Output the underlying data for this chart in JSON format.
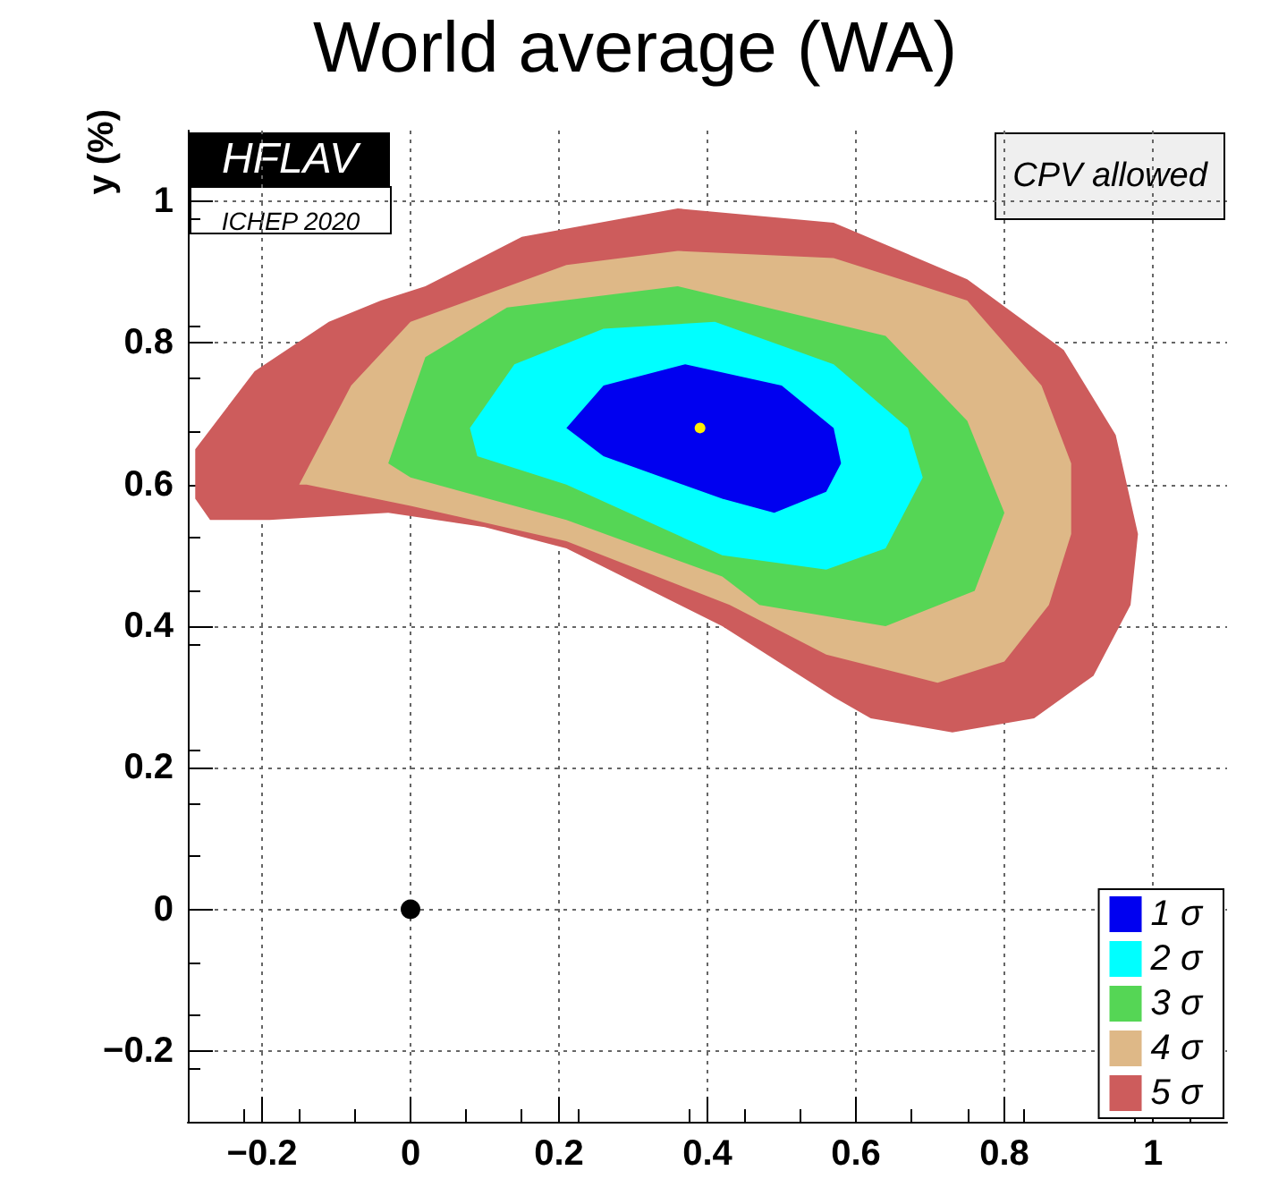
{
  "chart_data": {
    "type": "area",
    "title": "World average (WA)",
    "ylabel": "y (%)",
    "annotations": [
      "HFLAV",
      "ICHEP 2020",
      "CPV allowed"
    ],
    "xlim": [
      -0.3,
      1.1
    ],
    "ylim": [
      -0.3,
      1.1
    ],
    "xticks": [
      -0.2,
      0,
      0.2,
      0.4,
      0.6,
      0.8,
      1
    ],
    "yticks": [
      -0.2,
      0,
      0.2,
      0.4,
      0.6,
      0.8,
      1
    ],
    "grid": true,
    "legend": "bottom right",
    "series": [
      {
        "name": "1 σ",
        "color": "#0000f0",
        "x": [
          0.21,
          0.26,
          0.37,
          0.5,
          0.57,
          0.58,
          0.56,
          0.49,
          0.42,
          0.26
        ],
        "values": [
          0.68,
          0.74,
          0.77,
          0.74,
          0.68,
          0.63,
          0.59,
          0.56,
          0.58,
          0.64
        ]
      },
      {
        "name": "2 σ",
        "color": "#00ffff",
        "x": [
          0.08,
          0.14,
          0.26,
          0.41,
          0.57,
          0.67,
          0.69,
          0.64,
          0.56,
          0.42,
          0.21,
          0.09
        ],
        "values": [
          0.68,
          0.77,
          0.82,
          0.83,
          0.77,
          0.68,
          0.61,
          0.51,
          0.48,
          0.5,
          0.6,
          0.64
        ]
      },
      {
        "name": "3 σ",
        "color": "#55d655",
        "x": [
          -0.03,
          0.02,
          0.13,
          0.36,
          0.64,
          0.75,
          0.8,
          0.76,
          0.64,
          0.47,
          0.42,
          0.21,
          0
        ],
        "values": [
          0.63,
          0.78,
          0.85,
          0.88,
          0.81,
          0.69,
          0.56,
          0.45,
          0.4,
          0.43,
          0.47,
          0.55,
          0.61
        ]
      },
      {
        "name": "4 σ",
        "color": "#deb887",
        "x": [
          -0.15,
          -0.08,
          0,
          0.21,
          0.36,
          0.57,
          0.75,
          0.85,
          0.89,
          0.89,
          0.86,
          0.8,
          0.71,
          0.56,
          0.43,
          0.21,
          0,
          -0.14
        ],
        "values": [
          0.6,
          0.74,
          0.83,
          0.91,
          0.93,
          0.92,
          0.86,
          0.74,
          0.63,
          0.53,
          0.43,
          0.35,
          0.32,
          0.36,
          0.43,
          0.52,
          0.57,
          0.6
        ]
      },
      {
        "name": "5 σ",
        "color": "#cd5c5c",
        "x": [
          -0.29,
          -0.29,
          -0.21,
          -0.11,
          -0.04,
          0.02,
          0.15,
          0.36,
          0.57,
          0.75,
          0.88,
          0.95,
          0.98,
          0.97,
          0.92,
          0.84,
          0.73,
          0.62,
          0.57,
          0.42,
          0.21,
          0.1,
          -0.03,
          -0.19,
          -0.27
        ],
        "values": [
          0.58,
          0.65,
          0.76,
          0.83,
          0.86,
          0.88,
          0.95,
          0.99,
          0.97,
          0.89,
          0.79,
          0.67,
          0.53,
          0.43,
          0.33,
          0.27,
          0.25,
          0.27,
          0.3,
          0.4,
          0.51,
          0.54,
          0.56,
          0.55,
          0.55
        ]
      },
      {
        "type": "scatter",
        "color": "#ffee00",
        "x": [
          0.39
        ],
        "values": [
          0.68
        ],
        "marker": "circle"
      },
      {
        "type": "scatter",
        "color": "#000000",
        "x": [
          0
        ],
        "values": [
          0
        ],
        "marker": "circle"
      }
    ]
  }
}
